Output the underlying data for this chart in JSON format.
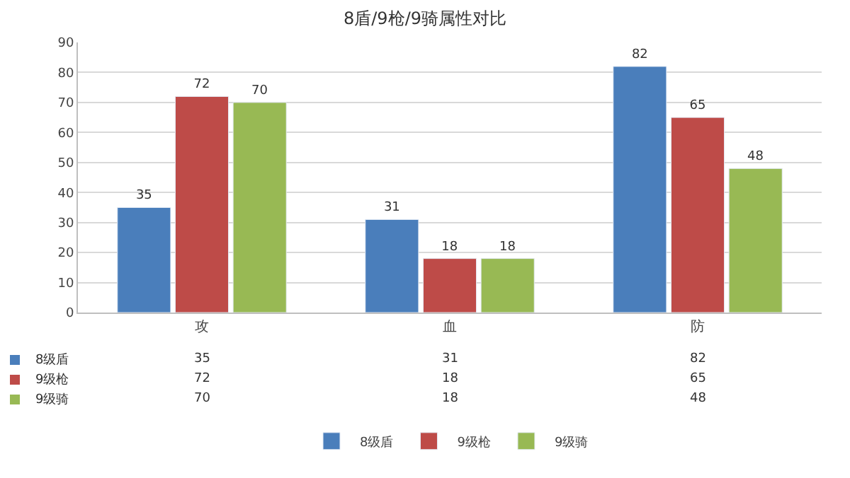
{
  "chart_data": {
    "type": "bar",
    "title": "8盾/9枪/9骑属性对比",
    "categories": [
      "攻",
      "血",
      "防"
    ],
    "series": [
      {
        "name": "8级盾",
        "color": "#4a7ebb",
        "values": [
          35,
          31,
          82
        ]
      },
      {
        "name": "9级枪",
        "color": "#be4b48",
        "values": [
          72,
          18,
          65
        ]
      },
      {
        "name": "9级骑",
        "color": "#98b954",
        "values": [
          70,
          18,
          48
        ]
      }
    ],
    "annotations": [
      "35",
      "31",
      "82",
      "72",
      "18",
      "65",
      "70",
      "18",
      "48"
    ],
    "ylim": [
      0,
      90
    ],
    "yticks": [
      0,
      10,
      20,
      30,
      40,
      50,
      60,
      70,
      80,
      90
    ],
    "grid": "y",
    "legend": "bottom",
    "data_labels": true
  }
}
